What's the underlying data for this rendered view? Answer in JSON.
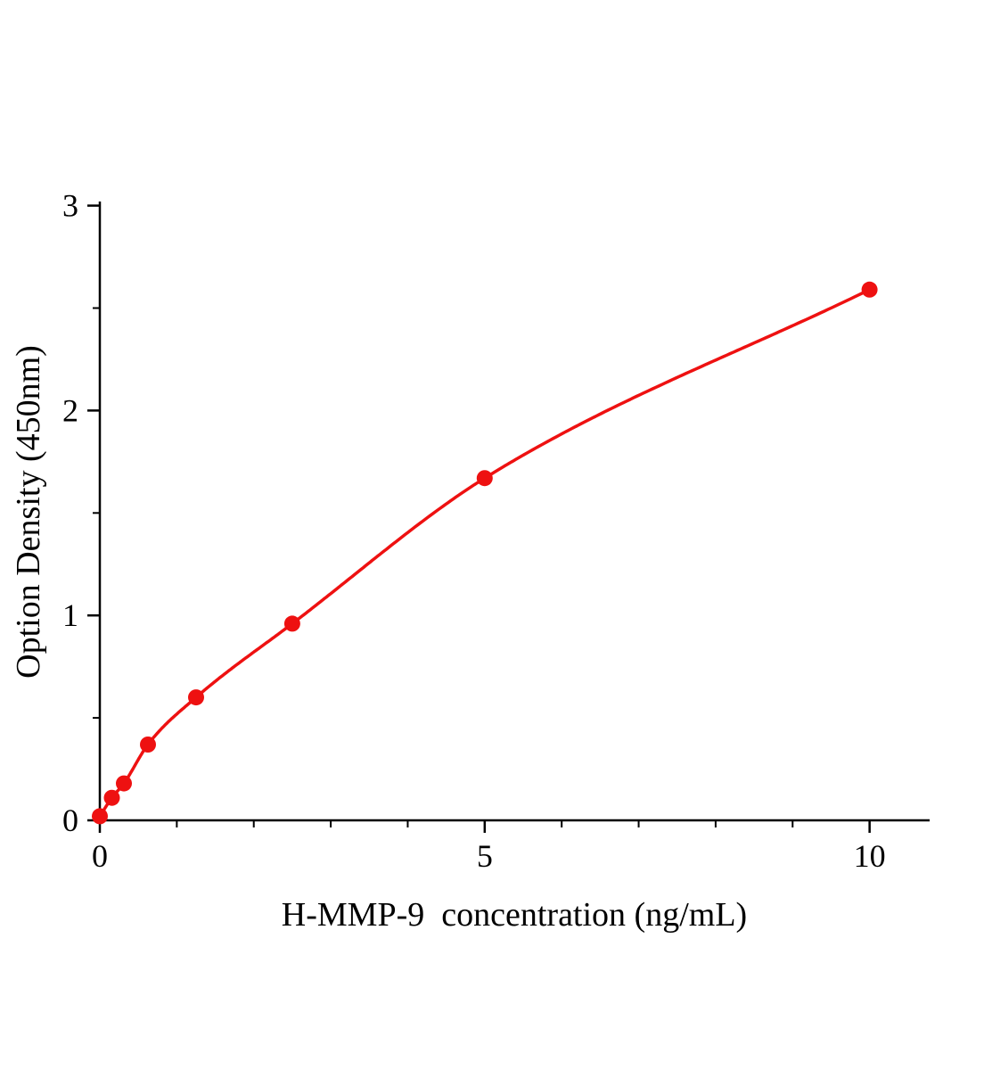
{
  "page": {
    "background": "#ffffff"
  },
  "chart_data": {
    "type": "scatter",
    "title": "",
    "xlabel": "H-MMP-9  concentration (ng/mL)",
    "ylabel": "Option Density (450nm)",
    "points": [
      {
        "x": 0,
        "y": 0.02
      },
      {
        "x": 0.156,
        "y": 0.11
      },
      {
        "x": 0.313,
        "y": 0.18
      },
      {
        "x": 0.625,
        "y": 0.37
      },
      {
        "x": 1.25,
        "y": 0.6
      },
      {
        "x": 2.5,
        "y": 0.96
      },
      {
        "x": 5,
        "y": 1.67
      },
      {
        "x": 10,
        "y": 2.59
      }
    ],
    "curve": "smooth fitted curve through data points",
    "xlim": [
      0,
      10.78
    ],
    "ylim": [
      0,
      3.02
    ],
    "x_major_ticks": [
      {
        "value": 0,
        "label": "0"
      },
      {
        "value": 5,
        "label": "5"
      },
      {
        "value": 10,
        "label": "10"
      }
    ],
    "x_minor_ticks": [
      1,
      2,
      3,
      4,
      6,
      7,
      8,
      9
    ],
    "y_major_ticks": [
      {
        "value": 0,
        "label": "0"
      },
      {
        "value": 1,
        "label": "1"
      },
      {
        "value": 2,
        "label": "2"
      },
      {
        "value": 3,
        "label": "3"
      }
    ],
    "y_minor_ticks": [
      0.5,
      1.5,
      2.5
    ],
    "line_color": "#ee1111",
    "marker_color": "#ee1111",
    "marker_radius": 9,
    "axis_color": "#000000",
    "grid": "off",
    "legend": "none"
  }
}
